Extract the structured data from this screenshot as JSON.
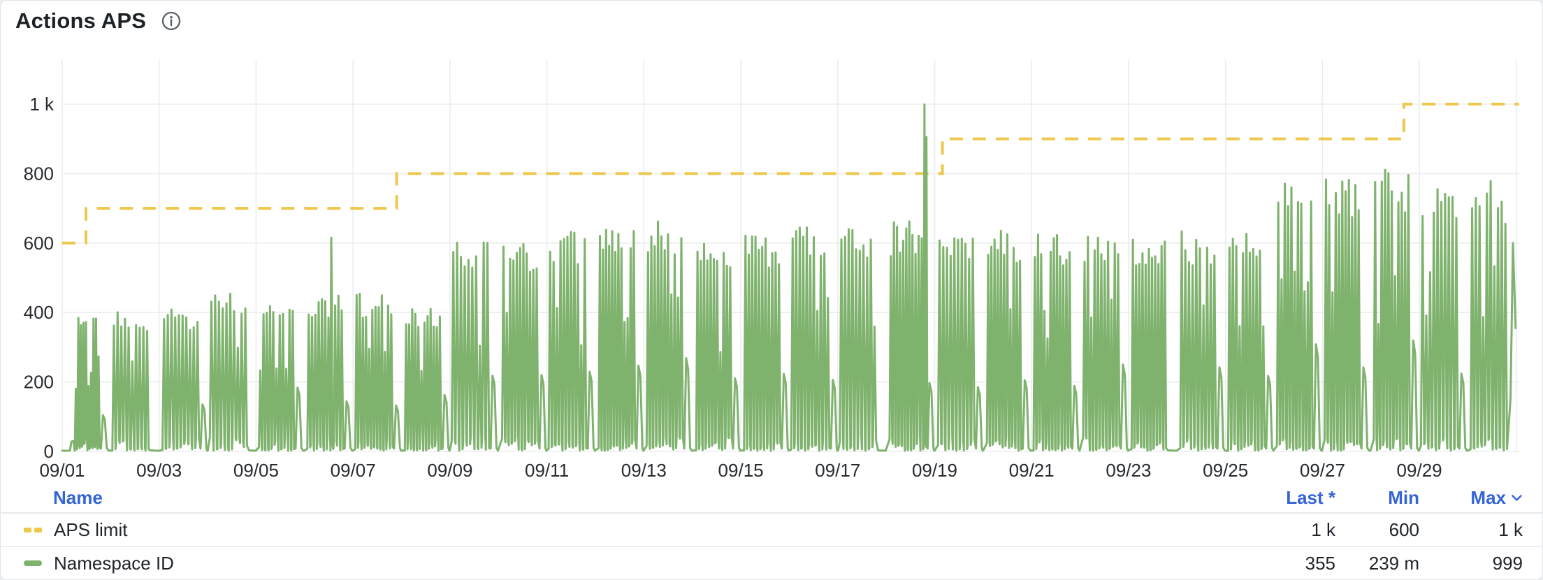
{
  "panel": {
    "title": "Actions APS"
  },
  "icons": {
    "info": "info-icon",
    "sort_desc": "chevron-down-icon"
  },
  "colors": {
    "aps_limit_yellow": "#EDC84C",
    "namespace_green": "#7EB26D",
    "legend_header_blue": "#3564D6",
    "text_dark": "#1F242A",
    "gridline": "#EBEDEE"
  },
  "chart_data": {
    "type": "line",
    "title": "Actions APS",
    "xlabel": "",
    "ylabel": "",
    "x_unit": "date (September, MM/DD)",
    "x_span_days": 30,
    "x_tick_labels": [
      "09/01",
      "09/03",
      "09/05",
      "09/07",
      "09/09",
      "09/11",
      "09/13",
      "09/15",
      "09/17",
      "09/19",
      "09/21",
      "09/23",
      "09/25",
      "09/27",
      "09/29"
    ],
    "x_tick_days": [
      0,
      2,
      4,
      6,
      8,
      10,
      12,
      14,
      16,
      18,
      20,
      22,
      24,
      26,
      28
    ],
    "ylim": [
      0,
      1130
    ],
    "y_ticks": [
      {
        "v": 0,
        "label": "0"
      },
      {
        "v": 200,
        "label": "200"
      },
      {
        "v": 400,
        "label": "400"
      },
      {
        "v": 600,
        "label": "600"
      },
      {
        "v": 800,
        "label": "800"
      },
      {
        "v": 1000,
        "label": "1 k"
      }
    ],
    "grid": true,
    "legend_position": "bottom-table",
    "series": [
      {
        "name": "APS limit",
        "type": "step-line",
        "style": "dashed",
        "color": "#EDC84C",
        "points_day_value": [
          [
            0,
            600
          ],
          [
            0.49,
            700
          ],
          [
            6.9,
            800
          ],
          [
            18.16,
            900
          ],
          [
            27.68,
            1000
          ],
          [
            30.06,
            1000
          ]
        ],
        "stats": {
          "last": "1 k",
          "min": "600",
          "max": "1 k"
        }
      },
      {
        "name": "Namespace ID",
        "type": "line",
        "style": "solid-spiky-daily-bursts",
        "color": "#7EB26D",
        "daily_peaks": [
          400,
          410,
          415,
          465,
          450,
          455,
          455,
          415,
          625,
          615,
          635,
          665,
          665,
          620,
          630,
          645,
          640,
          665,
          630,
          640,
          630,
          630,
          630,
          635,
          660,
          815,
          800,
          815,
          795,
          780
        ],
        "tall_spikes": [
          {
            "day": 5.55,
            "value": 615
          },
          {
            "day": 17.79,
            "value": 999
          },
          {
            "day": 17.83,
            "value": 905
          }
        ],
        "baseline_between_bursts": 0,
        "last_value": 355,
        "stats": {
          "last": "355",
          "min": "239 m",
          "max": "999"
        }
      }
    ]
  },
  "legend": {
    "columns": {
      "name": "Name",
      "last": "Last *",
      "min": "Min",
      "max": "Max"
    },
    "sorted_column": "Max",
    "rows": [
      {
        "name": "APS limit",
        "last": "1 k",
        "min": "600",
        "max": "1 k"
      },
      {
        "name": "Namespace ID",
        "last": "355",
        "min": "239 m",
        "max": "999"
      }
    ]
  }
}
